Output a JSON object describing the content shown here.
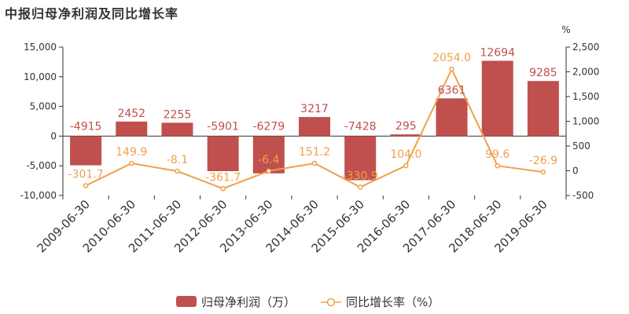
{
  "page_title": "中报归母净利润及同比增长率",
  "colors": {
    "bar": "#c0504d",
    "line": "#f0a04b",
    "axis": "#333333",
    "grid": "#dddddd"
  },
  "chart_data": {
    "type": "bar",
    "title": "中报归母净利润及同比增长率",
    "categories": [
      "2009-06-30",
      "2010-06-30",
      "2011-06-30",
      "2012-06-30",
      "2013-06-30",
      "2014-06-30",
      "2015-06-30",
      "2016-06-30",
      "2017-06-30",
      "2018-06-30",
      "2019-06-30"
    ],
    "series": [
      {
        "name": "归母净利润（万）",
        "type": "bar",
        "axis": "left",
        "values": [
          -4915,
          2452,
          2255,
          -5901,
          -6279,
          3217,
          -7428,
          295,
          6361,
          12694,
          9285
        ],
        "labels": [
          "-4915",
          "2452",
          "2255",
          "-5901",
          "-6279",
          "3217",
          "-7428",
          "295",
          "6361",
          "12694",
          "9285"
        ]
      },
      {
        "name": "同比增长率（%）",
        "type": "line",
        "axis": "right",
        "values": [
          -301.7,
          149.9,
          -8.1,
          -361.7,
          -6.4,
          151.2,
          -330.9,
          104.0,
          2054.0,
          99.6,
          -26.9
        ],
        "labels": [
          "-301.7",
          "149.9",
          "-8.1",
          "-361.7",
          "-6.4",
          "151.2",
          "-330.9",
          "104.0",
          "2054.0",
          "99.6",
          "-26.9"
        ]
      }
    ],
    "y_left": {
      "min": -10000,
      "max": 15000,
      "ticks": [
        15000,
        10000,
        5000,
        0,
        -5000,
        -10000
      ],
      "tick_labels": [
        "15,000",
        "10,000",
        "5,000",
        "0",
        "-5,000",
        "-10,000"
      ]
    },
    "y_right": {
      "min": -500,
      "max": 2500,
      "unit": "%",
      "ticks": [
        2500,
        2000,
        1500,
        1000,
        500,
        0,
        -500
      ],
      "tick_labels": [
        "2,500",
        "2,000",
        "1,500",
        "1,000",
        "500",
        "0",
        "-500"
      ]
    },
    "legend": {
      "position": "bottom",
      "items": [
        "归母净利润（万）",
        "同比增长率（%）"
      ]
    }
  }
}
